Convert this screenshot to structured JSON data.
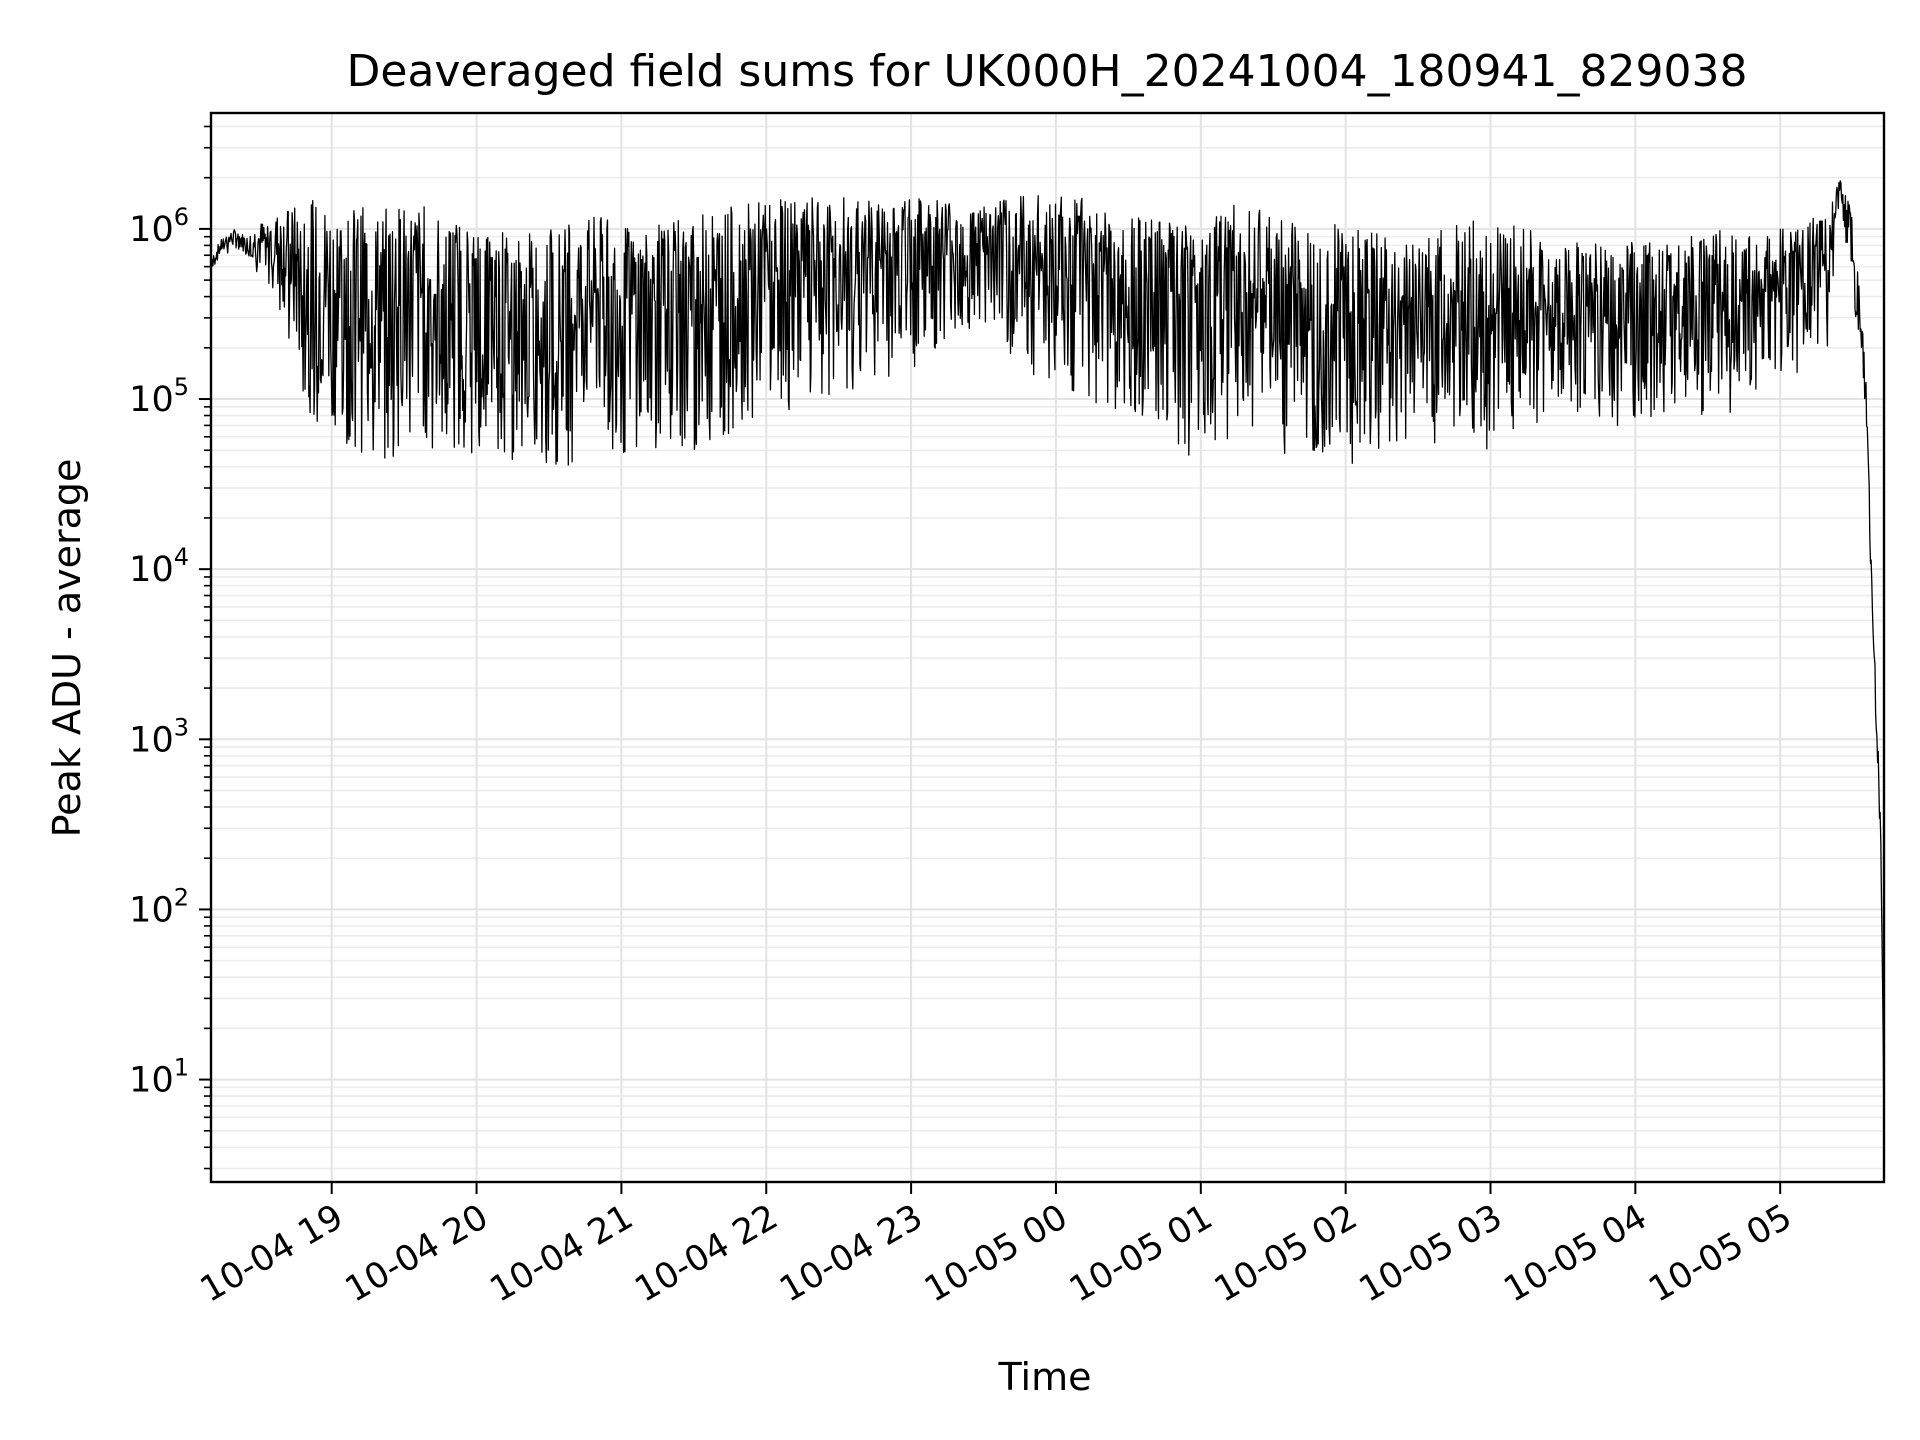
{
  "chart_data": {
    "type": "line",
    "title": "Deaveraged field sums for UK000H_20241004_180941_829038",
    "xlabel": "Time",
    "ylabel": "Peak ADU - average",
    "yscale": "log",
    "ylim": [
      2.5,
      4800000
    ],
    "xlim": [
      "2024-10-04 18:10",
      "2024-10-05 05:43"
    ],
    "grid": true,
    "x_ticks": [
      "10-04 19",
      "10-04 20",
      "10-04 21",
      "10-04 22",
      "10-04 23",
      "10-05 00",
      "10-05 01",
      "10-05 02",
      "10-05 03",
      "10-05 04",
      "10-05 05"
    ],
    "y_ticks": [
      {
        "value": 10,
        "base": "10",
        "exp": "1"
      },
      {
        "value": 100,
        "base": "10",
        "exp": "2"
      },
      {
        "value": 1000,
        "base": "10",
        "exp": "3"
      },
      {
        "value": 10000,
        "base": "10",
        "exp": "4"
      },
      {
        "value": 100000,
        "base": "10",
        "exp": "5"
      },
      {
        "value": 1000000,
        "base": "10",
        "exp": "6"
      }
    ],
    "series": [
      {
        "color": "#000000",
        "x": [
          "2024-10-04 18:10",
          "2024-10-04 18:15",
          "2024-10-04 18:20",
          "2024-10-04 18:25",
          "2024-10-04 18:30",
          "2024-10-04 18:35",
          "2024-10-04 18:40",
          "2024-10-04 18:45",
          "2024-10-04 18:50",
          "2024-10-04 18:55",
          "2024-10-04 19:00",
          "2024-10-04 19:10",
          "2024-10-04 19:20",
          "2024-10-04 19:30",
          "2024-10-04 19:40",
          "2024-10-04 19:50",
          "2024-10-04 20:00",
          "2024-10-04 20:10",
          "2024-10-04 20:20",
          "2024-10-04 20:30",
          "2024-10-04 20:40",
          "2024-10-04 20:50",
          "2024-10-04 21:00",
          "2024-10-04 21:10",
          "2024-10-04 21:20",
          "2024-10-04 21:30",
          "2024-10-04 21:40",
          "2024-10-04 21:50",
          "2024-10-04 22:00",
          "2024-10-04 22:15",
          "2024-10-04 22:30",
          "2024-10-04 22:45",
          "2024-10-04 23:00",
          "2024-10-04 23:15",
          "2024-10-04 23:30",
          "2024-10-04 23:45",
          "2024-10-05 00:00",
          "2024-10-05 00:15",
          "2024-10-05 00:30",
          "2024-10-05 00:45",
          "2024-10-05 01:00",
          "2024-10-05 01:15",
          "2024-10-05 01:30",
          "2024-10-05 01:45",
          "2024-10-05 02:00",
          "2024-10-05 02:15",
          "2024-10-05 02:30",
          "2024-10-05 02:45",
          "2024-10-05 03:00",
          "2024-10-05 03:15",
          "2024-10-05 03:30",
          "2024-10-05 03:45",
          "2024-10-05 04:00",
          "2024-10-05 04:15",
          "2024-10-05 04:30",
          "2024-10-05 04:45",
          "2024-10-05 05:00",
          "2024-10-05 05:10",
          "2024-10-05 05:20",
          "2024-10-05 05:25",
          "2024-10-05 05:30",
          "2024-10-05 05:34",
          "2024-10-05 05:36",
          "2024-10-05 05:38",
          "2024-10-05 05:40",
          "2024-10-05 05:41",
          "2024-10-05 05:42",
          "2024-10-05 05:43"
        ],
        "upper": [
          700000,
          900000,
          1000000,
          900000,
          1100000,
          1200000,
          1300000,
          1400000,
          1500000,
          1450000,
          1500000,
          1400000,
          1300000,
          1500000,
          1400000,
          1200000,
          1100000,
          1000000,
          950000,
          1000000,
          1100000,
          1200000,
          1100000,
          1000000,
          1100000,
          1200000,
          1300000,
          1400000,
          1500000,
          1500000,
          1600000,
          1500000,
          1500000,
          1600000,
          1400000,
          1600000,
          1600000,
          1500000,
          1200000,
          1100000,
          1000000,
          1500000,
          1200000,
          1000000,
          1300000,
          900000,
          800000,
          1100000,
          1200000,
          1000000,
          800000,
          900000,
          850000,
          800000,
          1000000,
          1000000,
          1000000,
          1100000,
          1300000,
          2000000,
          1200000,
          300000,
          100000,
          8000,
          1500,
          600,
          200,
          5
        ],
        "lower": [
          550000,
          700000,
          750000,
          700000,
          500000,
          400000,
          300000,
          120000,
          60000,
          55000,
          50000,
          45000,
          40000,
          40000,
          40000,
          38000,
          40000,
          40000,
          38000,
          40000,
          40000,
          42000,
          45000,
          50000,
          45000,
          40000,
          50000,
          60000,
          70000,
          80000,
          100000,
          120000,
          150000,
          200000,
          180000,
          150000,
          120000,
          100000,
          60000,
          40000,
          50000,
          60000,
          40000,
          50000,
          30000,
          50000,
          60000,
          50000,
          28000,
          60000,
          80000,
          60000,
          70000,
          80000,
          70000,
          80000,
          90000,
          150000,
          200000,
          1500000,
          400000,
          150000,
          60000,
          5000,
          800,
          300,
          60,
          5
        ]
      }
    ]
  }
}
